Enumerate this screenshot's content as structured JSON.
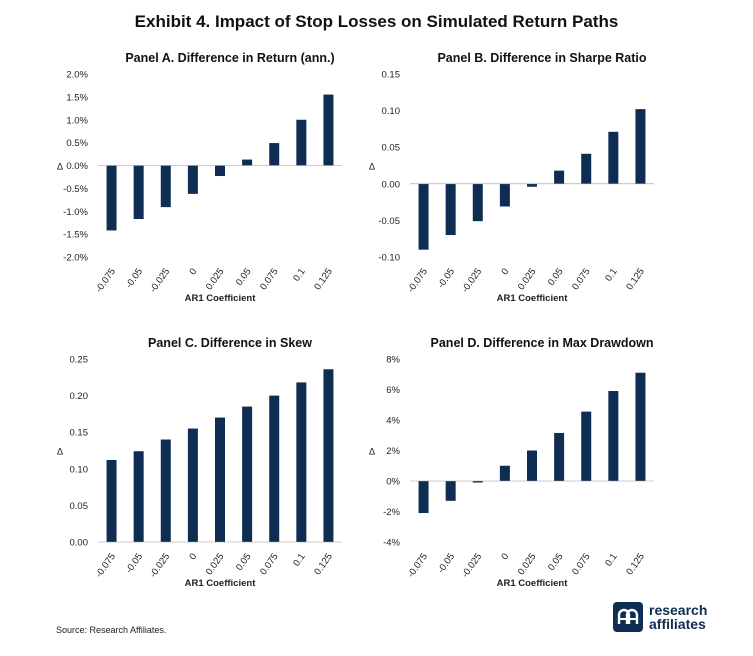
{
  "title": "Exhibit 4. Impact of Stop Losses on Simulated Return Paths",
  "source": "Source: Research Affiliates.",
  "logo": {
    "line1": "research",
    "line2": "affiliates",
    "mark": "ra-monogram-icon"
  },
  "colors": {
    "bar": "#0f2d52",
    "axis": "#999999"
  },
  "chart_data": [
    {
      "type": "bar",
      "title": "Panel A. Difference in Return (ann.)",
      "xlabel": "AR1 Coefficient",
      "ylabel": "Δ",
      "categories": [
        "-0.075",
        "-0.05",
        "-0.025",
        "0",
        "0.025",
        "0.05",
        "0.075",
        "0.1",
        "0.125"
      ],
      "values": [
        -1.42,
        -1.17,
        -0.91,
        -0.62,
        -0.23,
        0.13,
        0.49,
        1.0,
        1.55
      ],
      "ylim": [
        -2.0,
        2.0
      ],
      "yticks": [
        2.0,
        1.5,
        1.0,
        0.5,
        0.0,
        -0.5,
        -1.0,
        -1.5,
        -2.0
      ],
      "ytick_labels": [
        "2.0%",
        "1.5%",
        "1.0%",
        "0.5%",
        "0.0%",
        "-0.5%",
        "-1.0%",
        "-1.5%",
        "-2.0%"
      ],
      "grid": false
    },
    {
      "type": "bar",
      "title": "Panel B. Difference in Sharpe Ratio",
      "xlabel": "AR1 Coefficient",
      "ylabel": "Δ",
      "categories": [
        "-0.075",
        "-0.05",
        "-0.025",
        "0",
        "0.025",
        "0.05",
        "0.075",
        "0.1",
        "0.125"
      ],
      "values": [
        -0.09,
        -0.07,
        -0.051,
        -0.031,
        -0.004,
        0.018,
        0.041,
        0.071,
        0.102
      ],
      "ylim": [
        -0.1,
        0.15
      ],
      "yticks": [
        0.15,
        0.1,
        0.05,
        0.0,
        -0.05,
        -0.1
      ],
      "ytick_labels": [
        "0.15",
        "0.10",
        "0.05",
        "0.00",
        "-0.05",
        "-0.10"
      ],
      "grid": false
    },
    {
      "type": "bar",
      "title": "Panel C. Difference in Skew",
      "xlabel": "AR1 Coefficient",
      "ylabel": "Δ",
      "categories": [
        "-0.075",
        "-0.05",
        "-0.025",
        "0",
        "0.025",
        "0.05",
        "0.075",
        "0.1",
        "0.125"
      ],
      "values": [
        0.112,
        0.124,
        0.14,
        0.155,
        0.17,
        0.185,
        0.2,
        0.218,
        0.236
      ],
      "ylim": [
        0.0,
        0.25
      ],
      "yticks": [
        0.25,
        0.2,
        0.15,
        0.1,
        0.05,
        0.0
      ],
      "ytick_labels": [
        "0.25",
        "0.20",
        "0.15",
        "0.10",
        "0.05",
        "0.00"
      ],
      "grid": false
    },
    {
      "type": "bar",
      "title": "Panel D. Difference in Max Drawdown",
      "xlabel": "AR1 Coefficient",
      "ylabel": "Δ",
      "categories": [
        "-0.075",
        "-0.05",
        "-0.025",
        "0",
        "0.025",
        "0.05",
        "0.075",
        "0.1",
        "0.125"
      ],
      "values": [
        -2.1,
        -1.3,
        -0.1,
        1.0,
        2.0,
        3.15,
        4.55,
        5.9,
        7.1
      ],
      "ylim": [
        -4,
        8
      ],
      "yticks": [
        8,
        6,
        4,
        2,
        0,
        -2,
        -4
      ],
      "ytick_labels": [
        "8%",
        "6%",
        "4%",
        "2%",
        "0%",
        "-2%",
        "-4%"
      ],
      "grid": false
    }
  ]
}
